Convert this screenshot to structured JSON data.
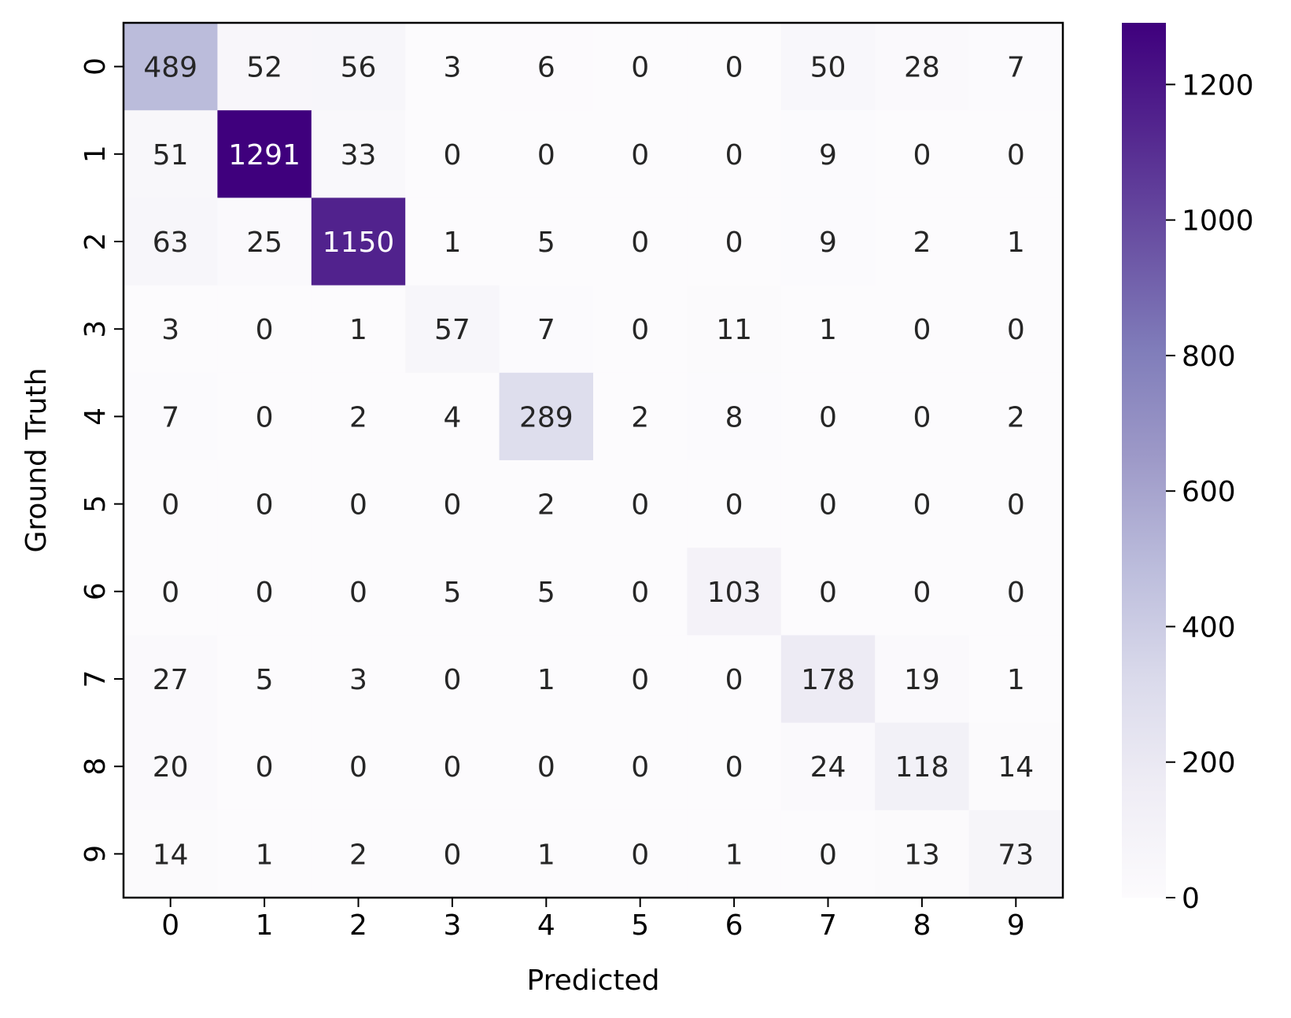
{
  "chart_data": {
    "type": "heatmap",
    "xlabel": "Predicted",
    "ylabel": "Ground Truth",
    "x_categories": [
      "0",
      "1",
      "2",
      "3",
      "4",
      "5",
      "6",
      "7",
      "8",
      "9"
    ],
    "y_categories": [
      "0",
      "1",
      "2",
      "3",
      "4",
      "5",
      "6",
      "7",
      "8",
      "9"
    ],
    "values": [
      [
        489,
        52,
        56,
        3,
        6,
        0,
        0,
        50,
        28,
        7
      ],
      [
        51,
        1291,
        33,
        0,
        0,
        0,
        0,
        9,
        0,
        0
      ],
      [
        63,
        25,
        1150,
        1,
        5,
        0,
        0,
        9,
        2,
        1
      ],
      [
        3,
        0,
        1,
        57,
        7,
        0,
        11,
        1,
        0,
        0
      ],
      [
        7,
        0,
        2,
        4,
        289,
        2,
        8,
        0,
        0,
        2
      ],
      [
        0,
        0,
        0,
        0,
        2,
        0,
        0,
        0,
        0,
        0
      ],
      [
        0,
        0,
        0,
        5,
        5,
        0,
        103,
        0,
        0,
        0
      ],
      [
        27,
        5,
        3,
        0,
        1,
        0,
        0,
        178,
        19,
        1
      ],
      [
        20,
        0,
        0,
        0,
        0,
        0,
        0,
        24,
        118,
        14
      ],
      [
        14,
        1,
        2,
        0,
        1,
        0,
        1,
        0,
        13,
        73
      ]
    ],
    "colorbar": {
      "ticks": [
        0,
        200,
        400,
        600,
        800,
        1000,
        1200
      ],
      "range": [
        0,
        1291
      ]
    },
    "colormap": "Purples",
    "colors": {
      "low": "#fcfbfd",
      "high": "#3f007d",
      "text_dark": "#262626",
      "text_light": "#ffffff"
    }
  }
}
